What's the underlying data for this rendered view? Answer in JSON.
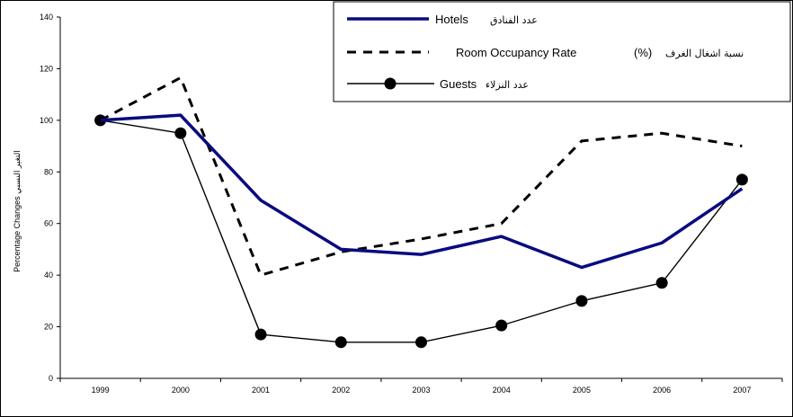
{
  "chart_data": {
    "type": "line",
    "ylabel": "Percentage Changes التغير النسبي",
    "ylim": [
      0,
      140
    ],
    "yticks": [
      0,
      20,
      40,
      60,
      80,
      100,
      120,
      140
    ],
    "categories": [
      "1999",
      "2000",
      "2001",
      "2002",
      "2003",
      "2004",
      "2005",
      "2006",
      "2007"
    ],
    "grid": false,
    "legend_position": "top-right",
    "series": [
      {
        "key": "hotels",
        "name": "Hotels",
        "name_ar": "عدد الفنادق",
        "style": "solid-thick",
        "color": "#0a0a80",
        "values": [
          100,
          102,
          69,
          50,
          48,
          55,
          43,
          52.5,
          73.5
        ]
      },
      {
        "key": "occupancy",
        "name": "Room Occupancy Rate",
        "name_suffix": "(%)",
        "name_ar": "نسبة اشغال الغرف",
        "style": "dashed",
        "color": "#000000",
        "values": [
          100,
          116.5,
          40,
          49,
          54,
          60,
          92,
          95,
          90
        ]
      },
      {
        "key": "guests",
        "name": "Guests",
        "name_ar": "عدد النزلاء",
        "style": "solid-thin-markers",
        "color": "#000000",
        "values": [
          100,
          95,
          17,
          14,
          14,
          20.5,
          30,
          37,
          77
        ]
      }
    ]
  }
}
